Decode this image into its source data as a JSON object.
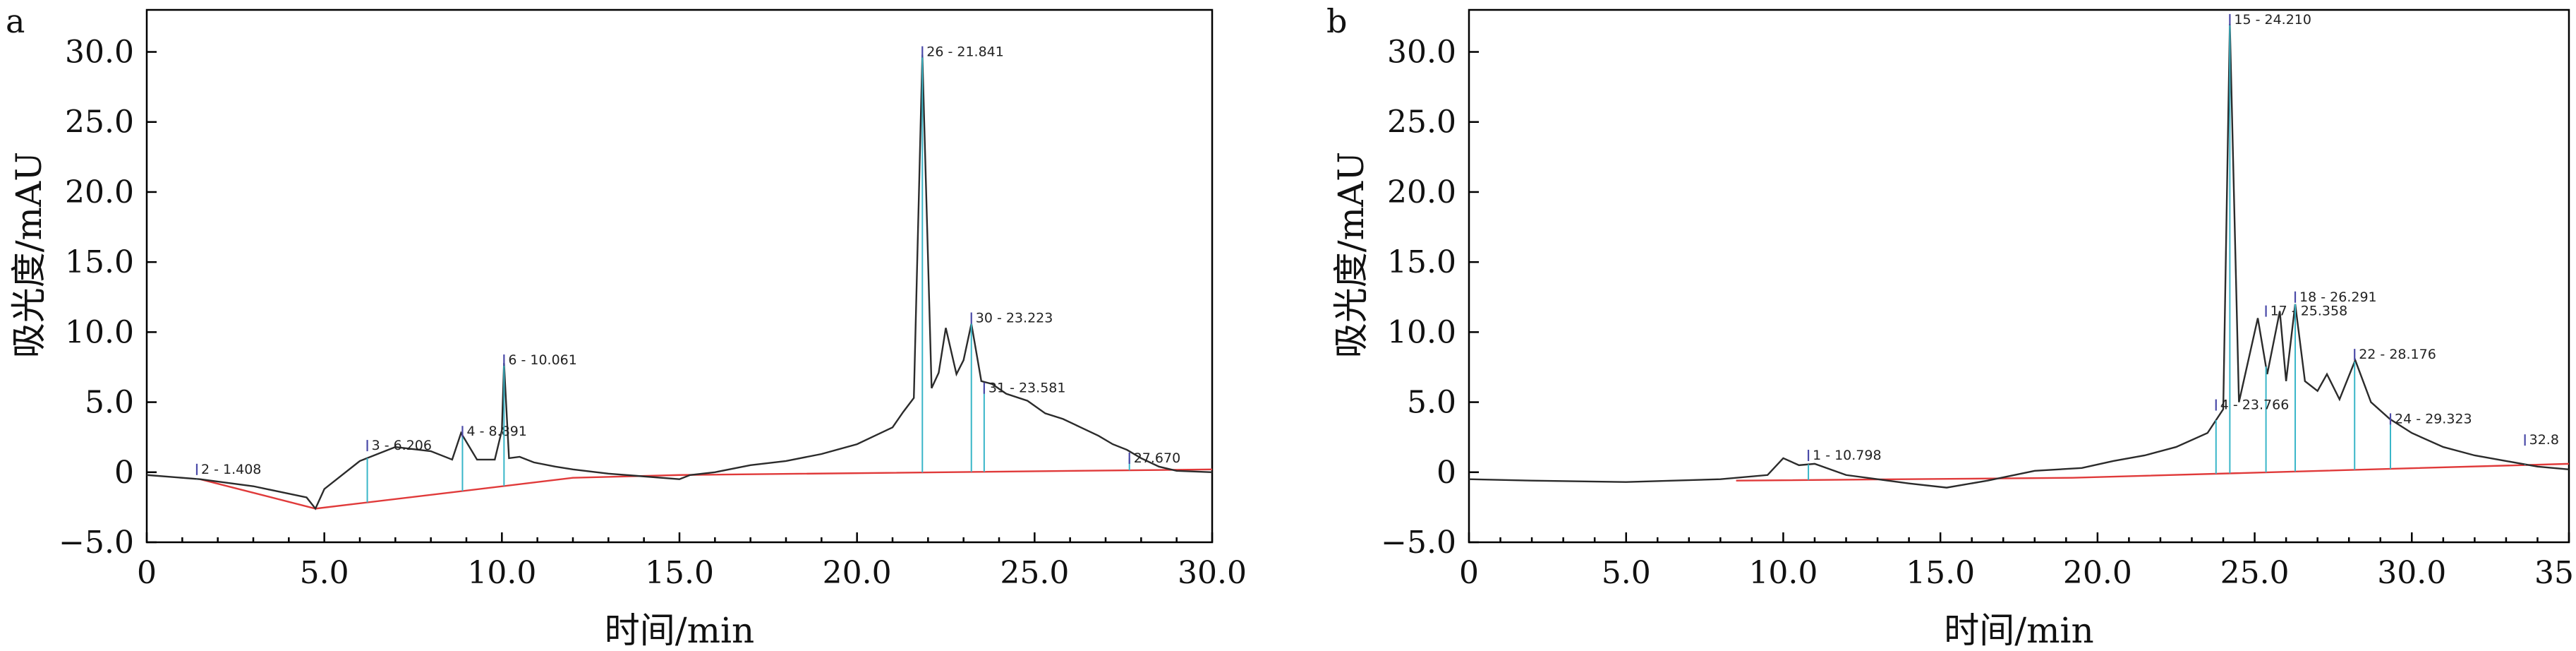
{
  "chart_data": [
    {
      "type": "line",
      "panel_label": "a",
      "xlabel": "时间/min",
      "ylabel": "吸光度/mAU",
      "xlim": [
        0,
        30
      ],
      "ylim": [
        -5,
        33
      ],
      "xticks": [
        "0",
        "5.0",
        "10.0",
        "15.0",
        "20.0",
        "25.0",
        "30.0"
      ],
      "xtick_values": [
        0,
        5,
        10,
        15,
        20,
        25,
        30
      ],
      "yticks": [
        "−5.0",
        "0",
        "5.0",
        "10.0",
        "15.0",
        "20.0",
        "25.0",
        "30.0"
      ],
      "ytick_values": [
        -5,
        0,
        5,
        10,
        15,
        20,
        25,
        30
      ],
      "series": [
        {
          "x": [
            0,
            1.5,
            3,
            4.5,
            4.75,
            5.0,
            6.0,
            7.0,
            8.0,
            8.6,
            8.85,
            9.3,
            9.8,
            10.0,
            10.06,
            10.2,
            10.5,
            10.9,
            11.5,
            12.0,
            13.0,
            14.0,
            15.0,
            15.3,
            16.0,
            17.0,
            18.0,
            19.0,
            20.0,
            20.5,
            21.0,
            21.3,
            21.6,
            21.84,
            22.1,
            22.3,
            22.5,
            22.8,
            23.0,
            23.22,
            23.5,
            23.8,
            24.2,
            24.8,
            25.3,
            25.8,
            26.3,
            26.8,
            27.2,
            27.6,
            28.0,
            28.5,
            29.0,
            30.0
          ],
          "y": [
            -0.2,
            -0.5,
            -1.0,
            -1.8,
            -2.6,
            -1.2,
            0.8,
            1.8,
            1.5,
            0.9,
            2.8,
            0.9,
            0.9,
            3.0,
            7.8,
            1.0,
            1.1,
            0.7,
            0.4,
            0.2,
            -0.1,
            -0.3,
            -0.5,
            -0.2,
            0.0,
            0.5,
            0.8,
            1.3,
            2.0,
            2.6,
            3.2,
            4.3,
            5.3,
            29.8,
            6.0,
            7.1,
            10.3,
            7.0,
            8.0,
            10.6,
            6.5,
            6.3,
            5.6,
            5.1,
            4.2,
            3.8,
            3.2,
            2.6,
            2.0,
            1.6,
            1.0,
            0.4,
            0.1,
            0.0
          ]
        }
      ],
      "baseline_anchors": {
        "x": [
          1.5,
          4.75,
          12.0,
          15.0,
          30.0
        ],
        "y": [
          -0.5,
          -2.6,
          -0.4,
          -0.2,
          0.2
        ]
      },
      "peak_labels": [
        {
          "text": "2 - 1.408",
          "x": 1.41,
          "y": 0.2
        },
        {
          "text": "3 - 6.206",
          "x": 6.21,
          "y": 1.9
        },
        {
          "text": "4 - 8.891",
          "x": 8.89,
          "y": 2.9
        },
        {
          "text": "6 - 10.061",
          "x": 10.06,
          "y": 8.0
        },
        {
          "text": "26 - 21.841",
          "x": 21.84,
          "y": 30.0
        },
        {
          "text": "30 - 23.223",
          "x": 23.22,
          "y": 11.0
        },
        {
          "text": "31 - 23.581",
          "x": 23.58,
          "y": 6.0
        },
        {
          "text": "27.670",
          "x": 27.67,
          "y": 1.0
        }
      ]
    },
    {
      "type": "line",
      "panel_label": "b",
      "xlabel": "时间/min",
      "ylabel": "吸光度/mAU",
      "xlim": [
        0,
        35
      ],
      "ylim": [
        -5,
        33
      ],
      "xticks": [
        "0",
        "5.0",
        "10.0",
        "15.0",
        "20.0",
        "25.0",
        "30.0",
        "35.0"
      ],
      "xtick_values": [
        0,
        5,
        10,
        15,
        20,
        25,
        30,
        35
      ],
      "yticks": [
        "−5.0",
        "0",
        "5.0",
        "10.0",
        "15.0",
        "20.0",
        "25.0",
        "30.0"
      ],
      "ytick_values": [
        -5,
        0,
        5,
        10,
        15,
        20,
        25,
        30
      ],
      "series": [
        {
          "x": [
            0,
            2,
            5,
            8,
            9.5,
            10.0,
            10.5,
            11.0,
            12.0,
            13.0,
            14.0,
            15.2,
            16.5,
            18.0,
            19.5,
            20.5,
            21.5,
            22.5,
            23.5,
            24.0,
            24.21,
            24.5,
            24.8,
            25.1,
            25.4,
            25.8,
            26.0,
            26.29,
            26.6,
            27.0,
            27.3,
            27.7,
            28.2,
            28.7,
            29.3,
            30.0,
            31.0,
            32.0,
            33.0,
            34.0,
            35.0
          ],
          "y": [
            -0.5,
            -0.6,
            -0.7,
            -0.5,
            -0.2,
            1.0,
            0.5,
            0.6,
            -0.2,
            -0.5,
            -0.8,
            -1.1,
            -0.6,
            0.1,
            0.3,
            0.8,
            1.2,
            1.8,
            2.8,
            4.5,
            32.0,
            5.0,
            8.0,
            11.0,
            7.0,
            11.5,
            6.5,
            12.0,
            6.5,
            5.8,
            7.0,
            5.2,
            8.0,
            5.0,
            3.8,
            2.8,
            1.8,
            1.2,
            0.8,
            0.4,
            0.2
          ]
        }
      ],
      "baseline_anchors": {
        "x": [
          8.5,
          19.2,
          35.0
        ],
        "y": [
          -0.6,
          -0.4,
          0.6
        ]
      },
      "peak_labels": [
        {
          "text": "1 - 10.798",
          "x": 10.8,
          "y": 1.2
        },
        {
          "text": "15 - 24.210",
          "x": 24.21,
          "y": 32.3
        },
        {
          "text": "17 - 25.358",
          "x": 25.36,
          "y": 11.5
        },
        {
          "text": "18 - 26.291",
          "x": 26.29,
          "y": 12.5
        },
        {
          "text": "22 - 28.176",
          "x": 28.18,
          "y": 8.4
        },
        {
          "text": "4 - 23.766",
          "x": 23.77,
          "y": 4.8
        },
        {
          "text": "24 - 29.323",
          "x": 29.32,
          "y": 3.8
        },
        {
          "text": "32.8",
          "x": 33.6,
          "y": 2.3
        }
      ]
    }
  ]
}
